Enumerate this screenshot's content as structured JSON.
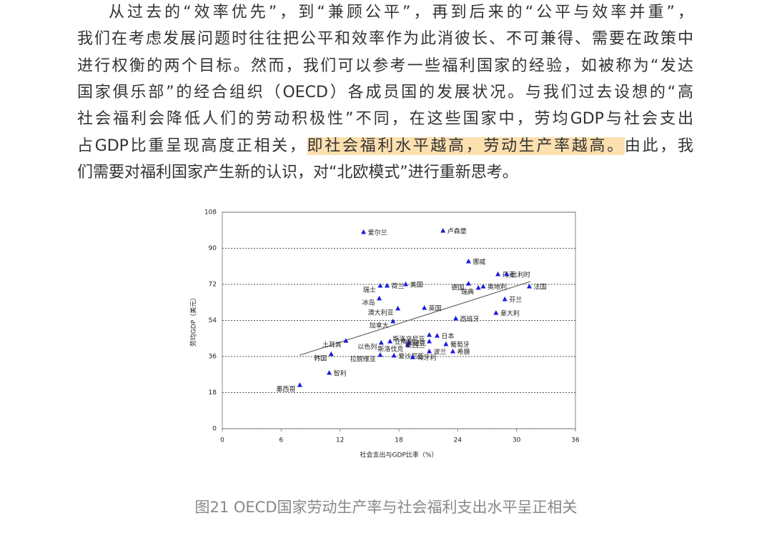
{
  "paragraph": [
    "从过去的“效率优先”，到“兼顾公平”，再到后来的“公平与效率并重”，",
    "我们在考虑发展问题时往往把公平和效率作为此消彼长、不可兼得、需要在政策中",
    "进行权衡的两个目标。然而，我们可以参考一些福利国家的经验，如被称为“发达",
    "国家俱乐部”的经合组织（OECD）各成员国的发展状况。与我们过去设想的“高",
    "社会福利会降低人们的劳动积极性”不同，在这些国家中，劳均GDP与社会支出",
    [
      "占GDP比重呈现高度正相关，",
      "即社会福利水平越高，劳动生产率越高。",
      "由此，我"
    ],
    "们需要对福利国家产生新的认识，对“北欧模式”进行重新思考。"
  ],
  "chart_data": {
    "type": "scatter",
    "color": "#1a1adc",
    "xlabel": "社会支出与GDP比率（%）",
    "ylabel": "劳均GDP（美元）",
    "xlim": [
      0,
      36
    ],
    "xticks": [
      0,
      6,
      12,
      18,
      24,
      30,
      36
    ],
    "ylim": [
      0,
      108
    ],
    "yticks": [
      0,
      18,
      36,
      54,
      72,
      90,
      108
    ],
    "grid": true,
    "labels": [
      "爱尔兰",
      "卢森堡",
      "挪威",
      "丹麦",
      "比利时",
      "德国",
      "奥地利",
      "瑞典",
      "法国",
      "瑞士",
      "荷兰",
      "美国",
      "冰岛",
      "澳大利亚",
      "英国",
      "芬兰",
      "西班牙",
      "意大利",
      "加拿大",
      "斯洛文尼亚",
      "日本",
      "土耳其",
      "立陶宛",
      "以色列",
      "捷克",
      "斯洛伐克",
      "新西兰",
      "葡萄牙",
      "波兰",
      "希腊",
      "韩国",
      "拉脱维亚",
      "爱沙尼亚",
      "匈牙利",
      "墨西哥",
      "智利"
    ],
    "x": [
      14.4,
      22.5,
      25.1,
      28.1,
      29.0,
      25.1,
      26.6,
      26.1,
      31.3,
      16.1,
      16.8,
      18.7,
      16.0,
      17.9,
      20.6,
      28.8,
      23.8,
      27.9,
      17.4,
      21.1,
      21.9,
      12.6,
      17.1,
      16.2,
      19.0,
      18.9,
      21.1,
      22.8,
      21.1,
      23.5,
      11.1,
      16.1,
      17.5,
      19.4,
      7.9,
      10.9
    ],
    "y": [
      98.0,
      98.7,
      83.4,
      77.0,
      77.0,
      72.3,
      70.9,
      70.2,
      70.9,
      71.3,
      71.3,
      72.0,
      64.9,
      59.9,
      60.2,
      64.5,
      54.9,
      57.7,
      53.5,
      46.7,
      46.3,
      43.8,
      43.5,
      42.8,
      42.8,
      41.7,
      43.5,
      42.1,
      38.5,
      38.5,
      37.1,
      36.7,
      36.4,
      35.6,
      21.7,
      27.8
    ],
    "trendline": {
      "x": [
        7.9,
        31.4
      ],
      "y": [
        36.7,
        73.4
      ]
    }
  },
  "caption": "图21 OECD国家劳动生产率与社会福利支出水平呈正相关"
}
